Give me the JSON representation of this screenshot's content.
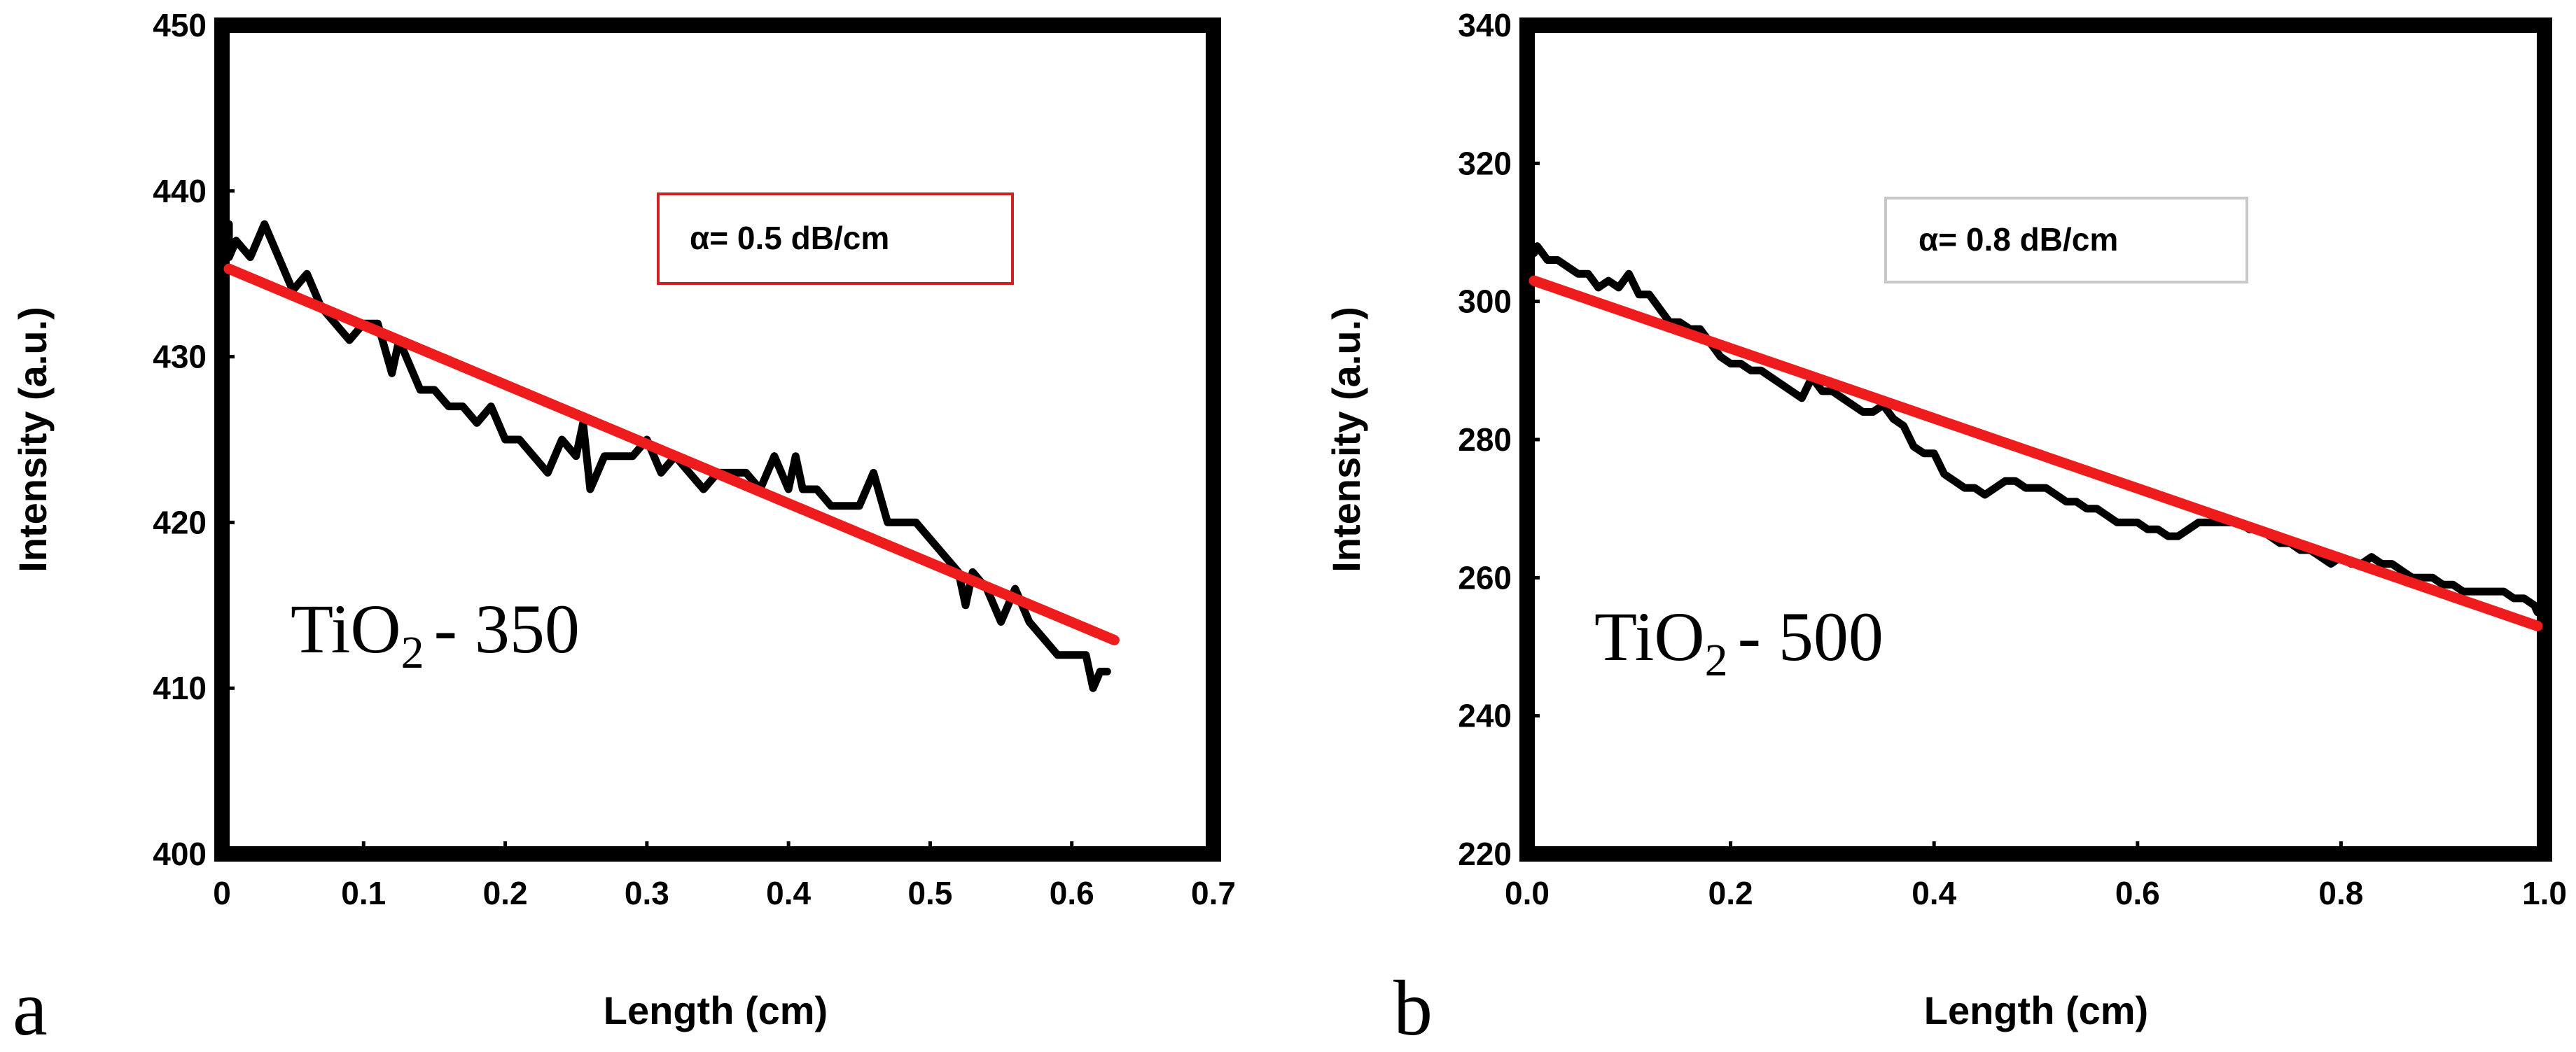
{
  "chart_data": [
    {
      "type": "line",
      "panel": "a",
      "title": "",
      "xlabel": "Length (cm)",
      "ylabel": "Intensity (a.u.)",
      "xlim": [
        0,
        0.7
      ],
      "ylim": [
        400,
        450
      ],
      "xticks": [
        0,
        0.1,
        0.2,
        0.3,
        0.4,
        0.5,
        0.6,
        0.7
      ],
      "xtick_labels": [
        "0",
        "0.1",
        "0.2",
        "0.3",
        "0.4",
        "0.5",
        "0.6",
        "0.7"
      ],
      "yticks": [
        400,
        410,
        420,
        430,
        440,
        450
      ],
      "ytick_labels": [
        "400",
        "410",
        "420",
        "430",
        "440",
        "450"
      ],
      "sample_label": {
        "main": "TiO",
        "sub": "2",
        "rest": "- 350"
      },
      "annotation": "α= 0.5 dB/cm",
      "annotation_border": "#cc2222",
      "series": [
        {
          "name": "measured",
          "color": "#000000",
          "x": [
            0.0,
            0.005,
            0.01,
            0.02,
            0.03,
            0.04,
            0.05,
            0.06,
            0.07,
            0.08,
            0.09,
            0.1,
            0.11,
            0.12,
            0.125,
            0.13,
            0.14,
            0.15,
            0.16,
            0.17,
            0.18,
            0.19,
            0.2,
            0.21,
            0.22,
            0.23,
            0.24,
            0.25,
            0.255,
            0.26,
            0.265,
            0.27,
            0.28,
            0.29,
            0.3,
            0.31,
            0.32,
            0.33,
            0.34,
            0.35,
            0.36,
            0.37,
            0.38,
            0.39,
            0.4,
            0.405,
            0.41,
            0.42,
            0.43,
            0.44,
            0.45,
            0.46,
            0.47,
            0.48,
            0.49,
            0.5,
            0.51,
            0.52,
            0.525,
            0.53,
            0.54,
            0.55,
            0.56,
            0.57,
            0.58,
            0.59,
            0.6,
            0.61,
            0.615,
            0.62,
            0.625
          ],
          "values": [
            438,
            436,
            437,
            436,
            438,
            436,
            434,
            435,
            433,
            432,
            431,
            432,
            432,
            429,
            431,
            430,
            428,
            428,
            427,
            427,
            426,
            427,
            425,
            425,
            424,
            423,
            425,
            424,
            426,
            422,
            423,
            424,
            424,
            424,
            425,
            423,
            424,
            423,
            422,
            423,
            423,
            423,
            422,
            424,
            422,
            424,
            422,
            422,
            421,
            421,
            421,
            423,
            420,
            420,
            420,
            419,
            418,
            417,
            415,
            417,
            416,
            414,
            416,
            414,
            413,
            412,
            412,
            412,
            410,
            411,
            411
          ]
        },
        {
          "name": "linear fit",
          "color": "#ee1c1c",
          "x": [
            0.0,
            0.63
          ],
          "values": [
            435.3,
            412.9
          ]
        }
      ]
    },
    {
      "type": "line",
      "panel": "b",
      "title": "",
      "xlabel": "Length (cm)",
      "ylabel": "Intensity (a.u.)",
      "xlim": [
        0.0,
        1.0
      ],
      "ylim": [
        220,
        340
      ],
      "xticks": [
        0.0,
        0.2,
        0.4,
        0.6,
        0.8,
        1.0
      ],
      "xtick_labels": [
        "0.0",
        "0.2",
        "0.4",
        "0.6",
        "0.8",
        "1.0"
      ],
      "yticks": [
        220,
        240,
        260,
        280,
        300,
        320,
        340
      ],
      "ytick_labels": [
        "220",
        "240",
        "260",
        "280",
        "300",
        "320",
        "340"
      ],
      "sample_label": {
        "main": "TiO",
        "sub": "2",
        "rest": "- 500"
      },
      "annotation": "α= 0.8 dB/cm",
      "annotation_border": "#c8c8c8",
      "series": [
        {
          "name": "measured",
          "color": "#000000",
          "x": [
            0.0,
            0.01,
            0.02,
            0.03,
            0.04,
            0.05,
            0.06,
            0.07,
            0.08,
            0.09,
            0.1,
            0.11,
            0.12,
            0.13,
            0.14,
            0.15,
            0.16,
            0.17,
            0.18,
            0.19,
            0.2,
            0.21,
            0.22,
            0.23,
            0.24,
            0.25,
            0.26,
            0.27,
            0.28,
            0.29,
            0.3,
            0.31,
            0.32,
            0.33,
            0.34,
            0.35,
            0.36,
            0.37,
            0.38,
            0.39,
            0.4,
            0.41,
            0.42,
            0.43,
            0.44,
            0.45,
            0.46,
            0.47,
            0.48,
            0.49,
            0.5,
            0.51,
            0.52,
            0.53,
            0.54,
            0.55,
            0.56,
            0.57,
            0.58,
            0.59,
            0.6,
            0.61,
            0.62,
            0.63,
            0.64,
            0.65,
            0.66,
            0.67,
            0.68,
            0.69,
            0.7,
            0.71,
            0.72,
            0.73,
            0.74,
            0.75,
            0.76,
            0.77,
            0.78,
            0.79,
            0.8,
            0.81,
            0.82,
            0.83,
            0.84,
            0.85,
            0.86,
            0.87,
            0.88,
            0.89,
            0.9,
            0.91,
            0.92,
            0.93,
            0.94,
            0.95,
            0.96,
            0.97,
            0.98,
            0.99,
            1.0
          ],
          "values": [
            307,
            308,
            306,
            306,
            305,
            304,
            304,
            302,
            303,
            302,
            304,
            301,
            301,
            299,
            297,
            297,
            296,
            296,
            294,
            292,
            291,
            291,
            290,
            290,
            289,
            288,
            287,
            286,
            289,
            287,
            287,
            286,
            285,
            284,
            284,
            285,
            283,
            282,
            279,
            278,
            278,
            275,
            274,
            273,
            273,
            272,
            273,
            274,
            274,
            273,
            273,
            273,
            272,
            271,
            271,
            270,
            270,
            269,
            268,
            268,
            268,
            267,
            267,
            266,
            266,
            267,
            268,
            268,
            268,
            268,
            268,
            267,
            267,
            266,
            265,
            265,
            264,
            264,
            263,
            262,
            263,
            262,
            262,
            263,
            262,
            262,
            261,
            260,
            260,
            260,
            259,
            259,
            258,
            258,
            258,
            258,
            258,
            257,
            257,
            256,
            255
          ]
        },
        {
          "name": "linear fit",
          "color": "#ee1c1c",
          "x": [
            0.0,
            1.0
          ],
          "values": [
            303.0,
            253.0
          ]
        }
      ]
    }
  ]
}
